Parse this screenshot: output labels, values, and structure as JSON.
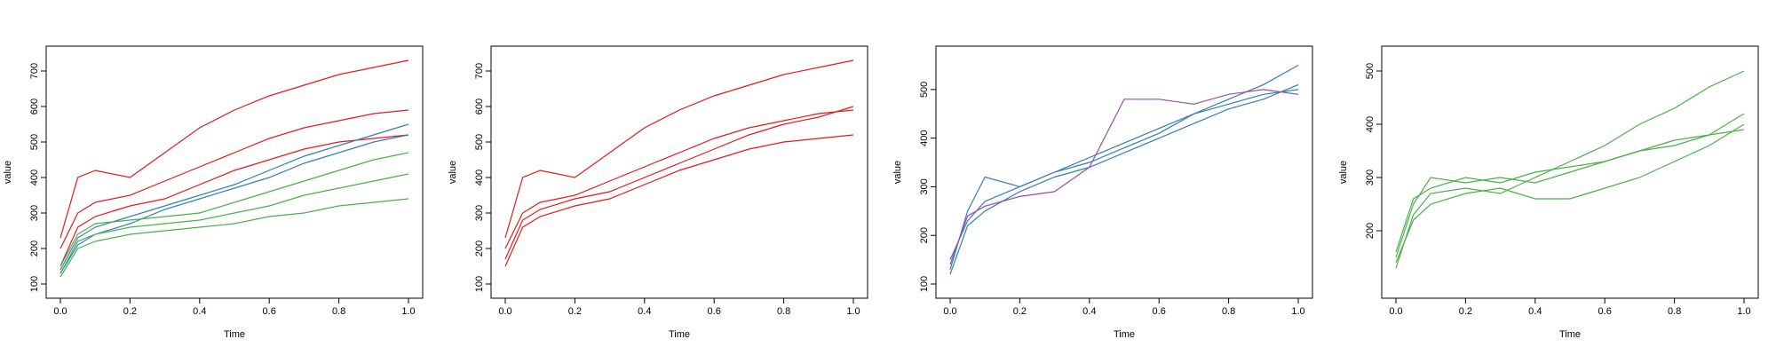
{
  "chart_data": [
    {
      "type": "line",
      "title": "",
      "xlabel": "Time",
      "ylabel": "value",
      "xlim": [
        0,
        1
      ],
      "ylim": [
        100,
        730
      ],
      "xticks": [
        0.0,
        0.2,
        0.4,
        0.6,
        0.8,
        1.0
      ],
      "xtick_labels": [
        "0.0",
        "0.2",
        "0.4",
        "0.6",
        "0.8",
        "1.0"
      ],
      "yticks": [
        100,
        200,
        300,
        400,
        500,
        600,
        700
      ],
      "ytick_labels": [
        "100",
        "200",
        "300",
        "400",
        "500",
        "600",
        "700"
      ],
      "grid": false,
      "legend": "none",
      "series": [
        {
          "color": "#e41a1c",
          "x": [
            0.0,
            0.05,
            0.1,
            0.2,
            0.3,
            0.4,
            0.5,
            0.6,
            0.7,
            0.8,
            0.9,
            1.0
          ],
          "y": [
            200,
            300,
            330,
            350,
            390,
            430,
            470,
            510,
            540,
            560,
            580,
            590
          ]
        },
        {
          "color": "#e41a1c",
          "x": [
            0.0,
            0.05,
            0.1,
            0.2,
            0.3,
            0.4,
            0.5,
            0.6,
            0.7,
            0.8,
            0.9,
            1.0
          ],
          "y": [
            230,
            400,
            420,
            400,
            470,
            540,
            590,
            630,
            660,
            690,
            710,
            730
          ]
        },
        {
          "color": "#e41a1c",
          "x": [
            0.0,
            0.05,
            0.1,
            0.2,
            0.3,
            0.4,
            0.5,
            0.6,
            0.7,
            0.8,
            0.9,
            1.0
          ],
          "y": [
            150,
            260,
            290,
            320,
            340,
            380,
            420,
            450,
            480,
            500,
            510,
            520
          ]
        },
        {
          "color": "#377eb8",
          "x": [
            0.0,
            0.05,
            0.1,
            0.2,
            0.3,
            0.4,
            0.5,
            0.6,
            0.7,
            0.8,
            0.9,
            1.0
          ],
          "y": [
            140,
            230,
            260,
            290,
            320,
            350,
            380,
            420,
            460,
            490,
            520,
            550
          ]
        },
        {
          "color": "#377eb8",
          "x": [
            0.0,
            0.05,
            0.1,
            0.2,
            0.3,
            0.4,
            0.5,
            0.6,
            0.7,
            0.8,
            0.9,
            1.0
          ],
          "y": [
            130,
            210,
            240,
            270,
            310,
            340,
            370,
            400,
            440,
            470,
            500,
            520
          ]
        },
        {
          "color": "#4daf4a",
          "x": [
            0.0,
            0.05,
            0.1,
            0.2,
            0.3,
            0.4,
            0.5,
            0.6,
            0.7,
            0.8,
            0.9,
            1.0
          ],
          "y": [
            130,
            220,
            240,
            260,
            270,
            280,
            300,
            320,
            350,
            370,
            390,
            410
          ]
        },
        {
          "color": "#4daf4a",
          "x": [
            0.0,
            0.05,
            0.1,
            0.2,
            0.3,
            0.4,
            0.5,
            0.6,
            0.7,
            0.8,
            0.9,
            1.0
          ],
          "y": [
            120,
            200,
            220,
            240,
            250,
            260,
            270,
            290,
            300,
            320,
            330,
            340
          ]
        },
        {
          "color": "#4daf4a",
          "x": [
            0.0,
            0.05,
            0.1,
            0.2,
            0.3,
            0.4,
            0.5,
            0.6,
            0.7,
            0.8,
            0.9,
            1.0
          ],
          "y": [
            150,
            240,
            270,
            280,
            290,
            300,
            330,
            360,
            390,
            420,
            450,
            470
          ]
        }
      ]
    },
    {
      "type": "line",
      "title": "",
      "xlabel": "Time",
      "ylabel": "value",
      "xlim": [
        0,
        1
      ],
      "ylim": [
        100,
        730
      ],
      "xticks": [
        0.0,
        0.2,
        0.4,
        0.6,
        0.8,
        1.0
      ],
      "xtick_labels": [
        "0.0",
        "0.2",
        "0.4",
        "0.6",
        "0.8",
        "1.0"
      ],
      "yticks": [
        100,
        200,
        300,
        400,
        500,
        600,
        700
      ],
      "ytick_labels": [
        "100",
        "200",
        "300",
        "400",
        "500",
        "600",
        "700"
      ],
      "grid": false,
      "legend": "none",
      "series": [
        {
          "color": "#e41a1c",
          "x": [
            0.0,
            0.05,
            0.1,
            0.2,
            0.3,
            0.4,
            0.5,
            0.6,
            0.7,
            0.8,
            0.9,
            1.0
          ],
          "y": [
            200,
            300,
            330,
            350,
            390,
            430,
            470,
            510,
            540,
            560,
            580,
            590
          ]
        },
        {
          "color": "#e41a1c",
          "x": [
            0.0,
            0.05,
            0.1,
            0.2,
            0.3,
            0.4,
            0.5,
            0.6,
            0.7,
            0.8,
            0.9,
            1.0
          ],
          "y": [
            230,
            400,
            420,
            400,
            470,
            540,
            590,
            630,
            660,
            690,
            710,
            730
          ]
        },
        {
          "color": "#e41a1c",
          "x": [
            0.0,
            0.05,
            0.1,
            0.2,
            0.3,
            0.4,
            0.5,
            0.6,
            0.7,
            0.8,
            0.9,
            1.0
          ],
          "y": [
            150,
            260,
            290,
            320,
            340,
            380,
            420,
            450,
            480,
            500,
            510,
            520
          ]
        },
        {
          "color": "#e41a1c",
          "x": [
            0.0,
            0.05,
            0.1,
            0.2,
            0.3,
            0.4,
            0.5,
            0.6,
            0.7,
            0.8,
            0.9,
            1.0
          ],
          "y": [
            170,
            280,
            310,
            340,
            360,
            400,
            440,
            480,
            520,
            550,
            570,
            600
          ]
        }
      ]
    },
    {
      "type": "line",
      "title": "",
      "xlabel": "Time",
      "ylabel": "value",
      "xlim": [
        0,
        1
      ],
      "ylim": [
        100,
        560
      ],
      "xticks": [
        0.0,
        0.2,
        0.4,
        0.6,
        0.8,
        1.0
      ],
      "xtick_labels": [
        "0.0",
        "0.2",
        "0.4",
        "0.6",
        "0.8",
        "1.0"
      ],
      "yticks": [
        100,
        200,
        300,
        400,
        500
      ],
      "ytick_labels": [
        "100",
        "200",
        "300",
        "400",
        "500"
      ],
      "grid": false,
      "legend": "none",
      "series": [
        {
          "color": "#377eb8",
          "x": [
            0.0,
            0.05,
            0.1,
            0.2,
            0.3,
            0.4,
            0.5,
            0.6,
            0.7,
            0.8,
            0.9,
            1.0
          ],
          "y": [
            130,
            250,
            320,
            300,
            330,
            360,
            390,
            420,
            450,
            480,
            510,
            550
          ]
        },
        {
          "color": "#377eb8",
          "x": [
            0.0,
            0.05,
            0.1,
            0.2,
            0.3,
            0.4,
            0.5,
            0.6,
            0.7,
            0.8,
            0.9,
            1.0
          ],
          "y": [
            150,
            230,
            270,
            300,
            330,
            350,
            380,
            410,
            450,
            470,
            490,
            500
          ]
        },
        {
          "color": "#377eb8",
          "x": [
            0.0,
            0.05,
            0.1,
            0.2,
            0.3,
            0.4,
            0.5,
            0.6,
            0.7,
            0.8,
            0.9,
            1.0
          ],
          "y": [
            120,
            220,
            250,
            290,
            320,
            340,
            370,
            400,
            430,
            460,
            480,
            510
          ]
        },
        {
          "color": "#984ea3",
          "x": [
            0.0,
            0.05,
            0.1,
            0.2,
            0.3,
            0.4,
            0.5,
            0.6,
            0.7,
            0.8,
            0.9,
            1.0
          ],
          "y": [
            140,
            240,
            260,
            280,
            290,
            340,
            480,
            480,
            470,
            490,
            500,
            490
          ]
        }
      ]
    },
    {
      "type": "line",
      "title": "",
      "xlabel": "Time",
      "ylabel": "value",
      "xlim": [
        0,
        1
      ],
      "ylim": [
        100,
        520
      ],
      "xticks": [
        0.0,
        0.2,
        0.4,
        0.6,
        0.8,
        1.0
      ],
      "xtick_labels": [
        "0.0",
        "0.2",
        "0.4",
        "0.6",
        "0.8",
        "1.0"
      ],
      "yticks": [
        200,
        300,
        400,
        500
      ],
      "ytick_labels": [
        "200",
        "300",
        "400",
        "500"
      ],
      "grid": false,
      "legend": "none",
      "series": [
        {
          "color": "#4daf4a",
          "x": [
            0.0,
            0.05,
            0.1,
            0.2,
            0.3,
            0.4,
            0.5,
            0.6,
            0.7,
            0.8,
            0.9,
            1.0
          ],
          "y": [
            130,
            230,
            270,
            280,
            270,
            300,
            330,
            360,
            400,
            430,
            470,
            500
          ]
        },
        {
          "color": "#4daf4a",
          "x": [
            0.0,
            0.05,
            0.1,
            0.2,
            0.3,
            0.4,
            0.5,
            0.6,
            0.7,
            0.8,
            0.9,
            1.0
          ],
          "y": [
            150,
            250,
            300,
            290,
            300,
            290,
            310,
            330,
            350,
            370,
            380,
            390
          ]
        },
        {
          "color": "#4daf4a",
          "x": [
            0.0,
            0.05,
            0.1,
            0.2,
            0.3,
            0.4,
            0.5,
            0.6,
            0.7,
            0.8,
            0.9,
            1.0
          ],
          "y": [
            140,
            220,
            250,
            270,
            280,
            260,
            260,
            280,
            300,
            330,
            360,
            400
          ]
        },
        {
          "color": "#4daf4a",
          "x": [
            0.0,
            0.05,
            0.1,
            0.2,
            0.3,
            0.4,
            0.5,
            0.6,
            0.7,
            0.8,
            0.9,
            1.0
          ],
          "y": [
            160,
            260,
            280,
            300,
            290,
            310,
            320,
            330,
            350,
            360,
            380,
            420
          ]
        }
      ]
    }
  ]
}
